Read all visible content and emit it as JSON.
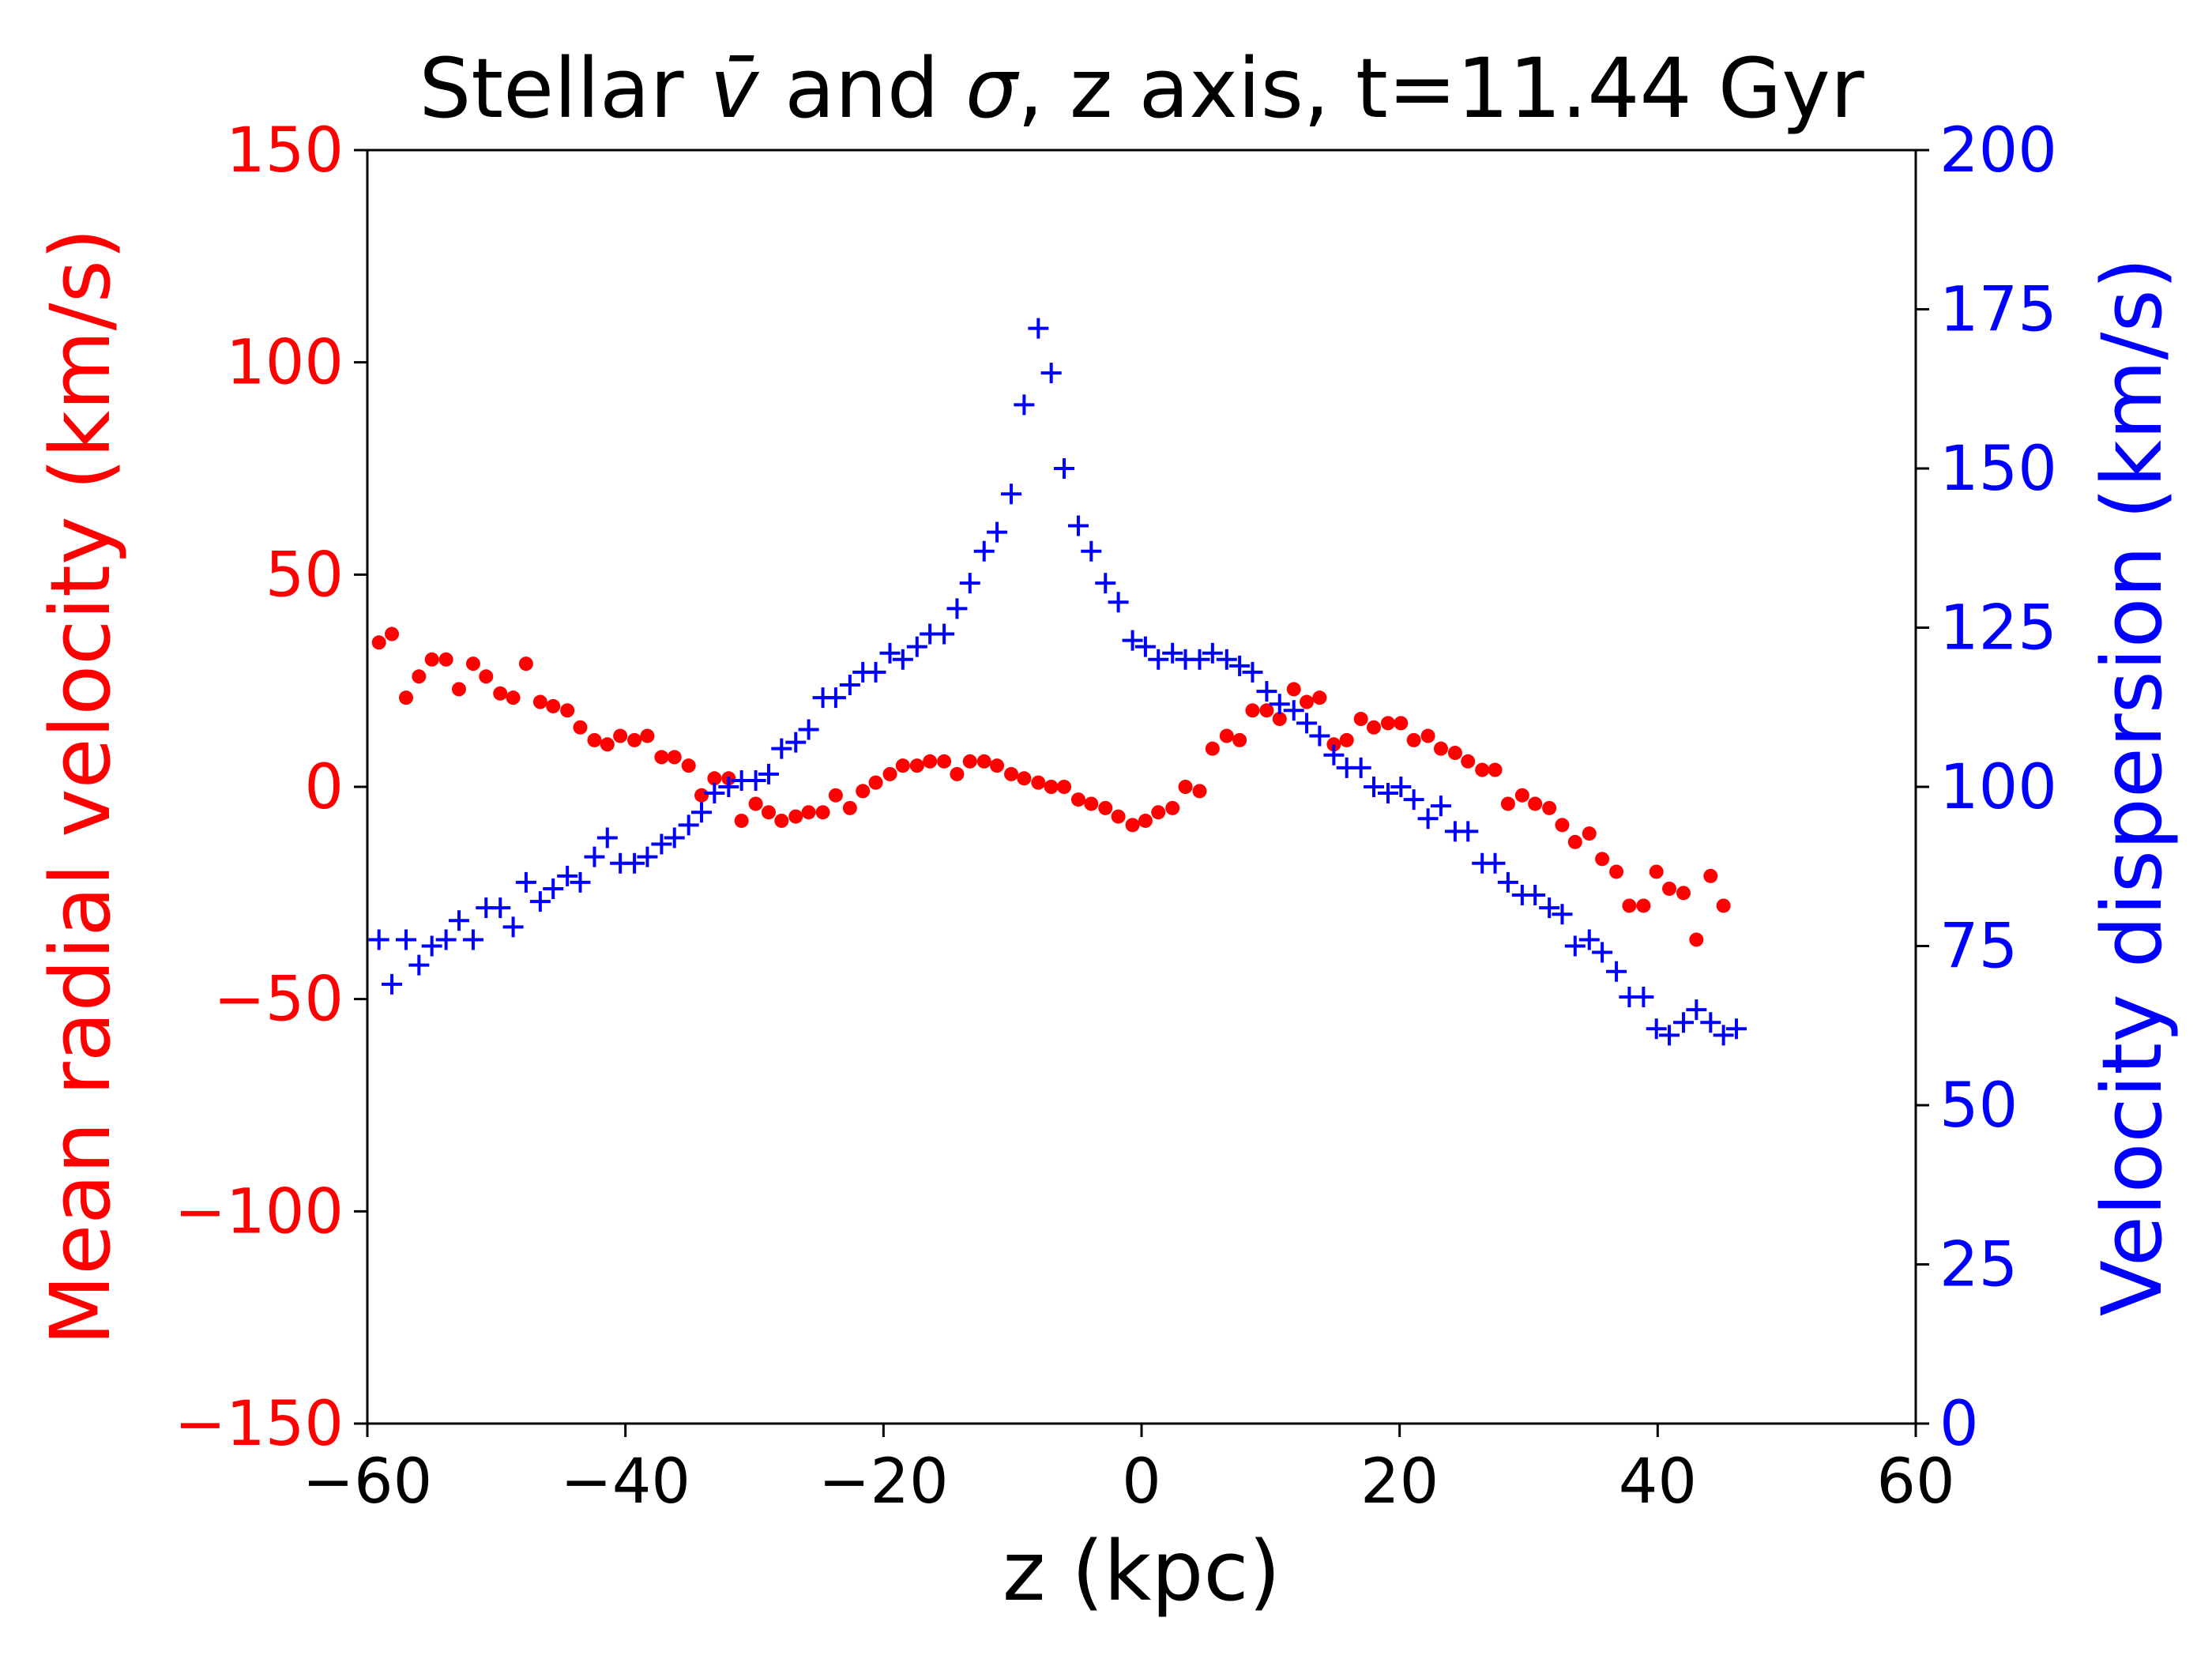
{
  "chart_data": {
    "type": "scatter",
    "title": "Stellar v̄ and σ, z axis, t=11.44 Gyr",
    "xlabel": "z (kpc)",
    "ylabel_left": "Mean radial velocity (km/s)",
    "ylabel_right": "Velocity dispersion (km/s)",
    "xlim": [
      -60,
      60
    ],
    "ylim_left": [
      -150,
      150
    ],
    "ylim_right": [
      0,
      200
    ],
    "x_ticks": [
      "−60",
      "−40",
      "−20",
      "0",
      "20",
      "40",
      "60"
    ],
    "y_ticks_left": [
      "−150",
      "−100",
      "−50",
      "0",
      "50",
      "100",
      "150"
    ],
    "y_ticks_right": [
      "0",
      "25",
      "50",
      "75",
      "100",
      "125",
      "150",
      "175",
      "200"
    ],
    "grid": false,
    "colors": {
      "left": "#ff0000",
      "right": "#0000ff",
      "axes": "#000000"
    },
    "series": [
      {
        "axis": "left",
        "marker": "dot",
        "color": "#ff0000",
        "points": [
          [
            -59.1,
            34
          ],
          [
            -58.1,
            36
          ],
          [
            -57.0,
            21
          ],
          [
            -56.0,
            26
          ],
          [
            -55.0,
            30
          ],
          [
            -53.9,
            30
          ],
          [
            -52.9,
            23
          ],
          [
            -51.8,
            29
          ],
          [
            -50.8,
            26
          ],
          [
            -49.7,
            22
          ],
          [
            -48.7,
            21
          ],
          [
            -47.7,
            29
          ],
          [
            -46.6,
            20
          ],
          [
            -45.6,
            19
          ],
          [
            -44.5,
            18
          ],
          [
            -43.5,
            14
          ],
          [
            -42.4,
            11
          ],
          [
            -41.4,
            10
          ],
          [
            -40.4,
            12
          ],
          [
            -39.3,
            11
          ],
          [
            -38.3,
            12
          ],
          [
            -37.2,
            7
          ],
          [
            -36.2,
            7
          ],
          [
            -35.1,
            5
          ],
          [
            -34.1,
            -2
          ],
          [
            -33.1,
            2
          ],
          [
            -32.0,
            2
          ],
          [
            -31.0,
            -8
          ],
          [
            -29.9,
            -4
          ],
          [
            -28.9,
            -6
          ],
          [
            -27.9,
            -8
          ],
          [
            -26.8,
            -7
          ],
          [
            -25.8,
            -6
          ],
          [
            -24.7,
            -6
          ],
          [
            -23.7,
            -2
          ],
          [
            -22.6,
            -5
          ],
          [
            -21.6,
            -1
          ],
          [
            -20.6,
            1
          ],
          [
            -19.5,
            3
          ],
          [
            -18.5,
            5
          ],
          [
            -17.4,
            5
          ],
          [
            -16.4,
            6
          ],
          [
            -15.3,
            6
          ],
          [
            -14.3,
            3
          ],
          [
            -13.3,
            6
          ],
          [
            -12.2,
            6
          ],
          [
            -11.2,
            5
          ],
          [
            -10.1,
            3
          ],
          [
            -9.1,
            2
          ],
          [
            -8.0,
            1
          ],
          [
            -7.0,
            0
          ],
          [
            -6.0,
            0
          ],
          [
            -4.9,
            -3
          ],
          [
            -3.9,
            -4
          ],
          [
            -2.8,
            -5
          ],
          [
            -1.8,
            -7
          ],
          [
            -0.7,
            -9
          ],
          [
            0.3,
            -8
          ],
          [
            1.3,
            -6
          ],
          [
            2.4,
            -5
          ],
          [
            3.4,
            0
          ],
          [
            4.5,
            -1
          ],
          [
            5.5,
            9
          ],
          [
            6.6,
            12
          ],
          [
            7.6,
            11
          ],
          [
            8.6,
            18
          ],
          [
            9.7,
            18
          ],
          [
            10.7,
            16
          ],
          [
            11.8,
            23
          ],
          [
            12.8,
            20
          ],
          [
            13.8,
            21
          ],
          [
            14.9,
            10
          ],
          [
            15.9,
            11
          ],
          [
            17.0,
            16
          ],
          [
            18.0,
            14
          ],
          [
            19.1,
            15
          ],
          [
            20.1,
            15
          ],
          [
            21.1,
            11
          ],
          [
            22.2,
            12
          ],
          [
            23.2,
            9
          ],
          [
            24.3,
            8
          ],
          [
            25.3,
            6
          ],
          [
            26.4,
            4
          ],
          [
            27.4,
            4
          ],
          [
            28.4,
            -4
          ],
          [
            29.5,
            -2
          ],
          [
            30.5,
            -4
          ],
          [
            31.6,
            -5
          ],
          [
            32.6,
            -9
          ],
          [
            33.6,
            -13
          ],
          [
            34.7,
            -11
          ],
          [
            35.7,
            -17
          ],
          [
            36.8,
            -20
          ],
          [
            37.8,
            -28
          ],
          [
            38.9,
            -28
          ],
          [
            39.9,
            -20
          ],
          [
            40.9,
            -24
          ],
          [
            42.0,
            -25
          ],
          [
            43.0,
            -36
          ],
          [
            44.1,
            -21
          ],
          [
            45.1,
            -28
          ]
        ]
      },
      {
        "axis": "right",
        "marker": "plus",
        "color": "#0000ff",
        "points": [
          [
            -59.1,
            76
          ],
          [
            -58.1,
            69
          ],
          [
            -57.0,
            76
          ],
          [
            -56.0,
            72
          ],
          [
            -55.0,
            75
          ],
          [
            -53.9,
            76
          ],
          [
            -52.9,
            79
          ],
          [
            -51.8,
            76
          ],
          [
            -50.8,
            81
          ],
          [
            -49.7,
            81
          ],
          [
            -48.7,
            78
          ],
          [
            -47.7,
            85
          ],
          [
            -46.6,
            82
          ],
          [
            -45.6,
            84
          ],
          [
            -44.5,
            86
          ],
          [
            -43.5,
            85
          ],
          [
            -42.4,
            89
          ],
          [
            -41.4,
            92
          ],
          [
            -40.4,
            88
          ],
          [
            -39.3,
            88
          ],
          [
            -38.3,
            89
          ],
          [
            -37.2,
            91
          ],
          [
            -36.2,
            92
          ],
          [
            -35.1,
            94
          ],
          [
            -34.1,
            96
          ],
          [
            -33.1,
            99
          ],
          [
            -32.0,
            100
          ],
          [
            -31.0,
            101
          ],
          [
            -29.9,
            101
          ],
          [
            -28.9,
            102
          ],
          [
            -27.9,
            106
          ],
          [
            -26.8,
            107
          ],
          [
            -25.8,
            109
          ],
          [
            -24.7,
            114
          ],
          [
            -23.7,
            114
          ],
          [
            -22.6,
            116
          ],
          [
            -21.6,
            118
          ],
          [
            -20.6,
            118
          ],
          [
            -19.5,
            121
          ],
          [
            -18.5,
            120
          ],
          [
            -17.4,
            122
          ],
          [
            -16.4,
            124
          ],
          [
            -15.3,
            124
          ],
          [
            -14.3,
            128
          ],
          [
            -13.3,
            132
          ],
          [
            -12.2,
            137
          ],
          [
            -11.2,
            140
          ],
          [
            -10.1,
            146
          ],
          [
            -9.1,
            160
          ],
          [
            -8.0,
            172
          ],
          [
            -7.0,
            165
          ],
          [
            -6.0,
            150
          ],
          [
            -4.9,
            141
          ],
          [
            -3.9,
            137
          ],
          [
            -2.8,
            132
          ],
          [
            -1.8,
            129
          ],
          [
            -0.7,
            123
          ],
          [
            0.3,
            122
          ],
          [
            1.3,
            120
          ],
          [
            2.4,
            121
          ],
          [
            3.4,
            120
          ],
          [
            4.5,
            120
          ],
          [
            5.5,
            121
          ],
          [
            6.6,
            120
          ],
          [
            7.6,
            119
          ],
          [
            8.6,
            118
          ],
          [
            9.7,
            115
          ],
          [
            10.7,
            113
          ],
          [
            11.8,
            112
          ],
          [
            12.8,
            110
          ],
          [
            13.8,
            108
          ],
          [
            14.9,
            105
          ],
          [
            15.9,
            103
          ],
          [
            17.0,
            103
          ],
          [
            18.0,
            100
          ],
          [
            19.1,
            99
          ],
          [
            20.1,
            100
          ],
          [
            21.1,
            98
          ],
          [
            22.2,
            95
          ],
          [
            23.2,
            97
          ],
          [
            24.3,
            93
          ],
          [
            25.3,
            93
          ],
          [
            26.4,
            88
          ],
          [
            27.4,
            88
          ],
          [
            28.4,
            85
          ],
          [
            29.5,
            83
          ],
          [
            30.5,
            83
          ],
          [
            31.6,
            81
          ],
          [
            32.6,
            80
          ],
          [
            33.6,
            75
          ],
          [
            34.7,
            76
          ],
          [
            35.7,
            74
          ],
          [
            36.8,
            71
          ],
          [
            37.8,
            67
          ],
          [
            38.9,
            67
          ],
          [
            39.9,
            62
          ],
          [
            40.9,
            61
          ],
          [
            42.0,
            63
          ],
          [
            43.0,
            65
          ],
          [
            44.1,
            63
          ],
          [
            45.1,
            61
          ],
          [
            46.1,
            62
          ]
        ]
      }
    ]
  }
}
